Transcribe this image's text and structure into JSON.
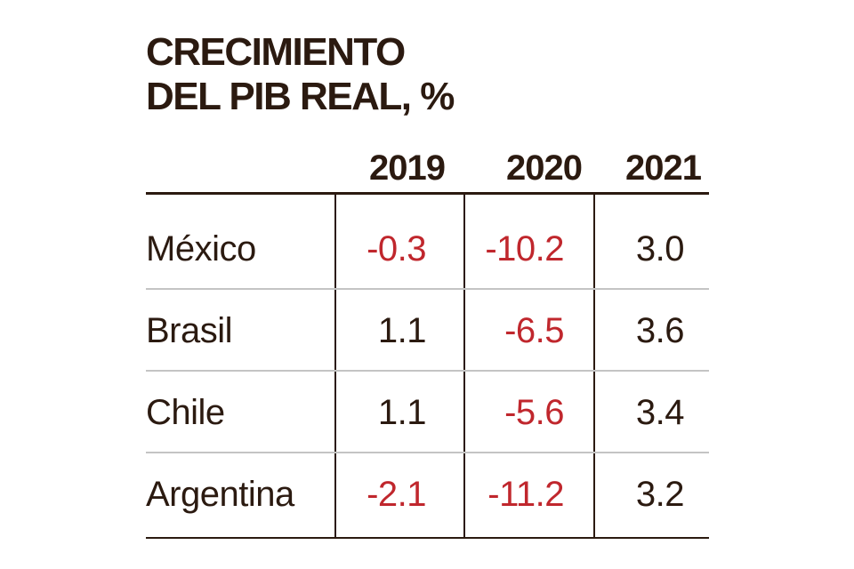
{
  "title": {
    "line1": "CRECIMIENTO",
    "line2": "DEL PIB REAL, %"
  },
  "colors": {
    "text": "#2b1a10",
    "negative": "#c0272d",
    "rule": "#2b1a10",
    "row_divider": "#c4c4c4",
    "background": "#ffffff"
  },
  "chart_data": {
    "type": "table",
    "title": "CRECIMIENTO DEL PIB REAL, %",
    "columns": [
      "2019",
      "2020",
      "2021"
    ],
    "rows": [
      {
        "country": "México",
        "values": [
          "-0.3",
          "-10.2",
          "3.0"
        ]
      },
      {
        "country": "Brasil",
        "values": [
          "1.1",
          "-6.5",
          "3.6"
        ]
      },
      {
        "country": "Chile",
        "values": [
          "1.1",
          "-5.6",
          "3.4"
        ]
      },
      {
        "country": "Argentina",
        "values": [
          "-2.1",
          "-11.2",
          "3.2"
        ]
      }
    ]
  }
}
